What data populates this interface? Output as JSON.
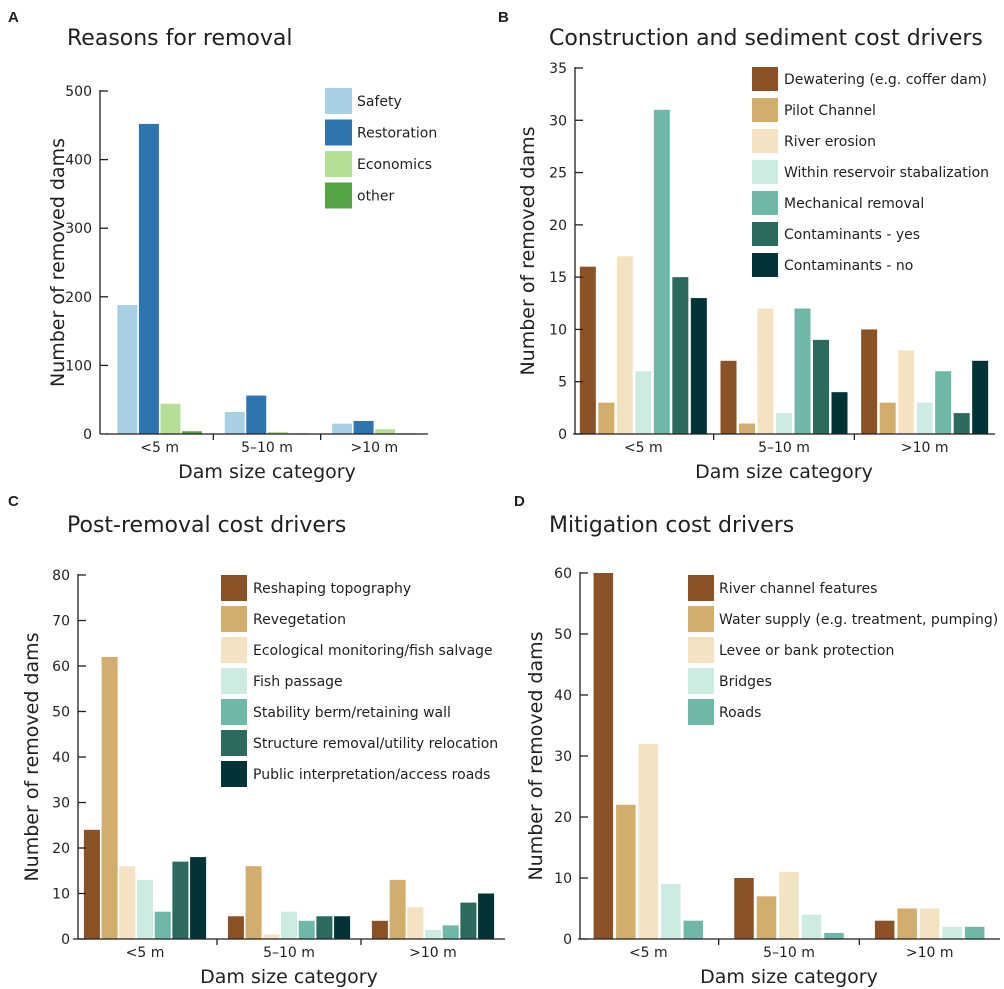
{
  "chart_data": [
    {
      "panel": "A",
      "type": "bar",
      "title": "Reasons for removal",
      "xlabel": "Dam size category",
      "ylabel": "Number of removed dams",
      "ylim": [
        0,
        500
      ],
      "yticks": [
        0,
        100,
        200,
        300,
        400,
        500
      ],
      "categories": [
        "<5 m",
        "5–10 m",
        ">10 m"
      ],
      "legend_position": "top-right",
      "series": [
        {
          "name": "Safety",
          "color": "#a9cfe3",
          "values": [
            188,
            32,
            15
          ]
        },
        {
          "name": "Restoration",
          "color": "#2e75b0",
          "values": [
            452,
            56,
            19
          ]
        },
        {
          "name": "Economics",
          "color": "#b7de95",
          "values": [
            44,
            3,
            7
          ]
        },
        {
          "name": "other",
          "color": "#55a444",
          "values": [
            4,
            1,
            1
          ]
        }
      ]
    },
    {
      "panel": "B",
      "type": "bar",
      "title": "Construction and sediment cost drivers",
      "xlabel": "Dam size category",
      "ylabel": "Number of removed dams",
      "ylim": [
        0,
        35
      ],
      "yticks": [
        0,
        5,
        10,
        15,
        20,
        25,
        30,
        35
      ],
      "categories": [
        "<5 m",
        "5–10 m",
        ">10 m"
      ],
      "legend_position": "top-right",
      "series": [
        {
          "name": "Dewatering (e.g. coffer dam)",
          "color": "#8b5228",
          "values": [
            16,
            7,
            10
          ]
        },
        {
          "name": "Pilot Channel",
          "color": "#d2ad6c",
          "values": [
            3,
            1,
            3
          ]
        },
        {
          "name": "River erosion",
          "color": "#f4e3c3",
          "values": [
            17,
            12,
            8
          ]
        },
        {
          "name": "Within reservoir stabalization",
          "color": "#cdeae3",
          "values": [
            6,
            2,
            3
          ]
        },
        {
          "name": "Mechanical removal",
          "color": "#6fb7a8",
          "values": [
            31,
            12,
            6
          ]
        },
        {
          "name": "Contaminants - yes",
          "color": "#2c6a5e",
          "values": [
            15,
            9,
            2
          ]
        },
        {
          "name": "Contaminants - no",
          "color": "#023336",
          "values": [
            13,
            4,
            7
          ]
        }
      ]
    },
    {
      "panel": "C",
      "type": "bar",
      "title": "Post-removal cost drivers",
      "xlabel": "Dam size category",
      "ylabel": "Number of removed dams",
      "ylim": [
        0,
        80
      ],
      "yticks": [
        0,
        10,
        20,
        30,
        40,
        50,
        60,
        70,
        80
      ],
      "categories": [
        "<5 m",
        "5–10 m",
        ">10 m"
      ],
      "legend_position": "top-right",
      "series": [
        {
          "name": "Reshaping topography",
          "color": "#8b5228",
          "values": [
            24,
            5,
            4
          ]
        },
        {
          "name": "Revegetation",
          "color": "#d2ad6c",
          "values": [
            62,
            16,
            13
          ]
        },
        {
          "name": "Ecological monitoring/fish salvage",
          "color": "#f4e3c3",
          "values": [
            16,
            1,
            7
          ]
        },
        {
          "name": "Fish passage",
          "color": "#cdeae3",
          "values": [
            13,
            6,
            2
          ]
        },
        {
          "name": "Stability berm/retaining wall",
          "color": "#6fb7a8",
          "values": [
            6,
            4,
            3
          ]
        },
        {
          "name": "Structure removal/utility relocation",
          "color": "#2c6a5e",
          "values": [
            17,
            5,
            8
          ]
        },
        {
          "name": "Public interpretation/access roads",
          "color": "#023336",
          "values": [
            18,
            5,
            10
          ]
        }
      ]
    },
    {
      "panel": "D",
      "type": "bar",
      "title": "Mitigation cost drivers",
      "xlabel": "Dam size category",
      "ylabel": "Number of removed dams",
      "ylim": [
        0,
        60
      ],
      "yticks": [
        0,
        10,
        20,
        30,
        40,
        50,
        60
      ],
      "categories": [
        "<5 m",
        "5–10 m",
        ">10 m"
      ],
      "legend_position": "top-right",
      "series": [
        {
          "name": "River channel features",
          "color": "#8b5228",
          "values": [
            60,
            10,
            3
          ]
        },
        {
          "name": "Water supply (e.g. treatment, pumping)",
          "color": "#d2ad6c",
          "values": [
            22,
            7,
            5
          ]
        },
        {
          "name": "Levee or bank protection",
          "color": "#f4e3c3",
          "values": [
            32,
            11,
            5
          ]
        },
        {
          "name": "Bridges",
          "color": "#cdeae3",
          "values": [
            9,
            4,
            2
          ]
        },
        {
          "name": "Roads",
          "color": "#6fb7a8",
          "values": [
            3,
            1,
            2
          ]
        }
      ]
    }
  ]
}
